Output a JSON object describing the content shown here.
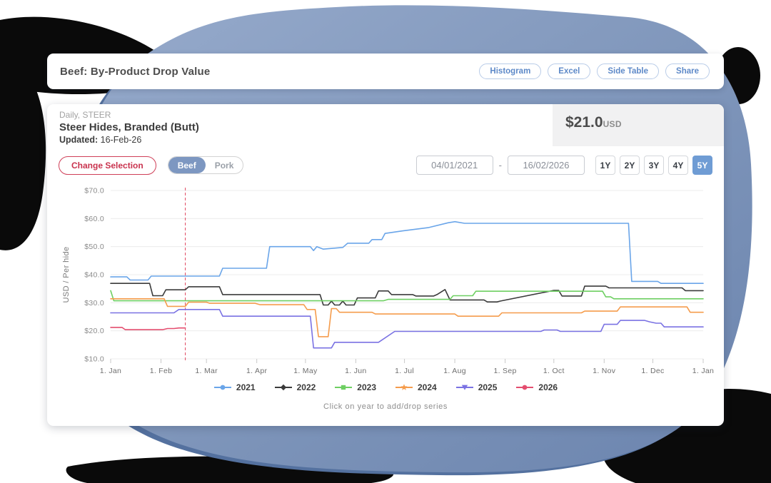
{
  "header": {
    "title": "Beef: By-Product Drop Value",
    "buttons": [
      "Histogram",
      "Excel",
      "Side Table",
      "Share"
    ]
  },
  "product": {
    "frequency_label": "Daily, STEER",
    "name": "Steer Hides, Branded (Butt)",
    "updated_label": "Updated:",
    "updated_value": "16-Feb-26",
    "price": "$21.0",
    "currency": "USD"
  },
  "controls": {
    "change_selection_label": "Change Selection",
    "category_toggle": [
      {
        "label": "Beef",
        "selected": true
      },
      {
        "label": "Pork",
        "selected": false
      }
    ],
    "date_from": "04/01/2021",
    "date_separator": "-",
    "date_to": "16/02/2026",
    "ranges": [
      {
        "label": "1Y",
        "selected": false
      },
      {
        "label": "2Y",
        "selected": false
      },
      {
        "label": "3Y",
        "selected": false
      },
      {
        "label": "4Y",
        "selected": false
      },
      {
        "label": "5Y",
        "selected": true
      }
    ]
  },
  "chart_data": {
    "type": "line",
    "title": "",
    "xlabel": "",
    "ylabel": "USD / Per hide",
    "ylim": [
      10,
      70
    ],
    "grid": "horizontal",
    "legend_position": "bottom",
    "legend_hint": "Click on year to add/drop series",
    "current_date_marker_day": 46,
    "marker_color": "#e0475f",
    "y_ticks": [
      {
        "value": 70,
        "label": "$70.0"
      },
      {
        "value": 60,
        "label": "$60.0"
      },
      {
        "value": 50,
        "label": "$50.0"
      },
      {
        "value": 40,
        "label": "$40.0"
      },
      {
        "value": 30,
        "label": "$30.0"
      },
      {
        "value": 20,
        "label": "$20.0"
      },
      {
        "value": 10,
        "label": "$10.0"
      }
    ],
    "x_ticks": [
      {
        "day": 0,
        "label": "1. Jan"
      },
      {
        "day": 31,
        "label": "1. Feb"
      },
      {
        "day": 59,
        "label": "1. Mar"
      },
      {
        "day": 90,
        "label": "1. Apr"
      },
      {
        "day": 120,
        "label": "1. May"
      },
      {
        "day": 151,
        "label": "1. Jun"
      },
      {
        "day": 181,
        "label": "1. Jul"
      },
      {
        "day": 212,
        "label": "1. Aug"
      },
      {
        "day": 243,
        "label": "1. Sep"
      },
      {
        "day": 273,
        "label": "1. Oct"
      },
      {
        "day": 304,
        "label": "1. Nov"
      },
      {
        "day": 334,
        "label": "1. Dec"
      },
      {
        "day": 365,
        "label": "1. Jan"
      }
    ],
    "series": [
      {
        "name": "2021",
        "color": "#6aa5e9",
        "marker": "circle",
        "points": [
          [
            0,
            39.2
          ],
          [
            10,
            39.2
          ],
          [
            12,
            38.1
          ],
          [
            23,
            38.1
          ],
          [
            25,
            39.5
          ],
          [
            67,
            39.5
          ],
          [
            69,
            42.3
          ],
          [
            96,
            42.3
          ],
          [
            98,
            50.0
          ],
          [
            123,
            50.0
          ],
          [
            125,
            48.6
          ],
          [
            127,
            50.0
          ],
          [
            131,
            49.1
          ],
          [
            143,
            49.7
          ],
          [
            146,
            51.2
          ],
          [
            159,
            51.2
          ],
          [
            161,
            52.5
          ],
          [
            167,
            52.5
          ],
          [
            169,
            54.7
          ],
          [
            180,
            55.6
          ],
          [
            196,
            56.8
          ],
          [
            208,
            58.5
          ],
          [
            212,
            58.9
          ],
          [
            218,
            58.3
          ],
          [
            319,
            58.3
          ],
          [
            321,
            37.6
          ],
          [
            337,
            37.6
          ],
          [
            339,
            36.9
          ],
          [
            365,
            36.9
          ]
        ]
      },
      {
        "name": "2022",
        "color": "#3b3b3b",
        "marker": "diamond",
        "points": [
          [
            0,
            36.9
          ],
          [
            24,
            36.9
          ],
          [
            26,
            32.5
          ],
          [
            32,
            32.5
          ],
          [
            34,
            34.6
          ],
          [
            46,
            34.6
          ],
          [
            48,
            35.7
          ],
          [
            67,
            35.7
          ],
          [
            69,
            32.9
          ],
          [
            129,
            32.9
          ],
          [
            131,
            29.2
          ],
          [
            134,
            29.2
          ],
          [
            136,
            30.6
          ],
          [
            138,
            29.2
          ],
          [
            141,
            29.2
          ],
          [
            143,
            30.6
          ],
          [
            145,
            29.2
          ],
          [
            150,
            29.2
          ],
          [
            152,
            31.7
          ],
          [
            163,
            31.7
          ],
          [
            165,
            34.2
          ],
          [
            171,
            34.2
          ],
          [
            173,
            32.9
          ],
          [
            186,
            32.9
          ],
          [
            188,
            32.4
          ],
          [
            199,
            32.4
          ],
          [
            201,
            32.9
          ],
          [
            206,
            34.7
          ],
          [
            209,
            31.0
          ],
          [
            230,
            31.0
          ],
          [
            232,
            30.3
          ],
          [
            238,
            30.3
          ],
          [
            240,
            30.6
          ],
          [
            273,
            34.4
          ],
          [
            276,
            34.4
          ],
          [
            278,
            32.4
          ],
          [
            290,
            32.4
          ],
          [
            292,
            35.9
          ],
          [
            305,
            35.9
          ],
          [
            307,
            35.3
          ],
          [
            352,
            35.3
          ],
          [
            354,
            34.3
          ],
          [
            365,
            34.3
          ]
        ]
      },
      {
        "name": "2023",
        "color": "#6ecf62",
        "marker": "square",
        "points": [
          [
            0,
            34.3
          ],
          [
            2,
            30.7
          ],
          [
            168,
            30.7
          ],
          [
            171,
            31.2
          ],
          [
            209,
            31.2
          ],
          [
            211,
            32.5
          ],
          [
            223,
            32.5
          ],
          [
            225,
            34.1
          ],
          [
            303,
            34.1
          ],
          [
            305,
            32.1
          ],
          [
            308,
            32.1
          ],
          [
            310,
            31.4
          ],
          [
            365,
            31.4
          ]
        ]
      },
      {
        "name": "2024",
        "color": "#f59c4c",
        "marker": "star",
        "points": [
          [
            0,
            31.4
          ],
          [
            33,
            31.4
          ],
          [
            35,
            28.7
          ],
          [
            46,
            28.7
          ],
          [
            48,
            30.2
          ],
          [
            59,
            30.2
          ],
          [
            61,
            29.8
          ],
          [
            89,
            29.8
          ],
          [
            92,
            29.3
          ],
          [
            119,
            29.3
          ],
          [
            121,
            27.6
          ],
          [
            126,
            27.6
          ],
          [
            128,
            17.9
          ],
          [
            134,
            17.9
          ],
          [
            136,
            27.9
          ],
          [
            139,
            27.9
          ],
          [
            141,
            26.6
          ],
          [
            161,
            26.6
          ],
          [
            163,
            26.0
          ],
          [
            212,
            26.0
          ],
          [
            214,
            25.2
          ],
          [
            239,
            25.2
          ],
          [
            241,
            26.4
          ],
          [
            290,
            26.4
          ],
          [
            292,
            27.0
          ],
          [
            312,
            27.0
          ],
          [
            314,
            28.5
          ],
          [
            355,
            28.5
          ],
          [
            357,
            26.6
          ],
          [
            365,
            26.6
          ]
        ]
      },
      {
        "name": "2025",
        "color": "#7a72e3",
        "marker": "triangle-down",
        "points": [
          [
            0,
            26.4
          ],
          [
            39,
            26.4
          ],
          [
            42,
            27.6
          ],
          [
            67,
            27.6
          ],
          [
            69,
            25.2
          ],
          [
            123,
            25.2
          ],
          [
            125,
            13.9
          ],
          [
            136,
            13.9
          ],
          [
            138,
            15.9
          ],
          [
            165,
            15.9
          ],
          [
            175,
            19.8
          ],
          [
            265,
            19.8
          ],
          [
            267,
            20.3
          ],
          [
            275,
            20.3
          ],
          [
            277,
            19.8
          ],
          [
            302,
            19.8
          ],
          [
            304,
            22.3
          ],
          [
            312,
            22.3
          ],
          [
            314,
            23.7
          ],
          [
            329,
            23.7
          ],
          [
            332,
            23.2
          ],
          [
            336,
            22.7
          ],
          [
            339,
            22.7
          ],
          [
            341,
            21.4
          ],
          [
            365,
            21.4
          ]
        ]
      },
      {
        "name": "2026",
        "color": "#e44d6f",
        "marker": "circle",
        "points": [
          [
            0,
            21.2
          ],
          [
            7,
            21.2
          ],
          [
            9,
            20.4
          ],
          [
            32,
            20.4
          ],
          [
            35,
            20.8
          ],
          [
            39,
            20.8
          ],
          [
            42,
            21.0
          ],
          [
            46,
            21.0
          ]
        ]
      }
    ],
    "colors": {
      "grid": "#ececec",
      "axis_tick": "#c9c9c9",
      "axis_label": "#8a8a8a",
      "x_label": "#6f6f6f"
    }
  },
  "background": {
    "blob_blue_light": "#8ba2c6",
    "blob_blue_dark": "#5f7aa6",
    "blob_black": "#0a0a0a"
  }
}
